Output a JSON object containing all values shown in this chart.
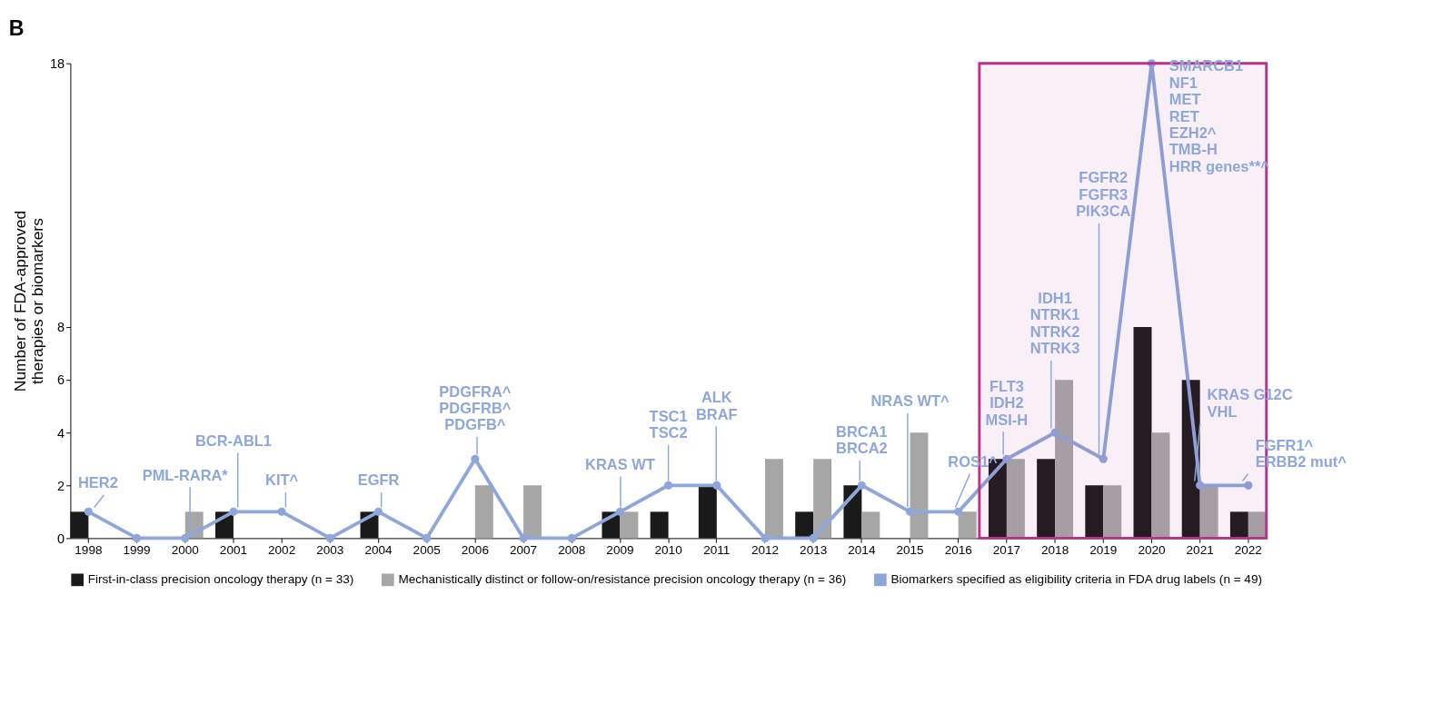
{
  "chart_data": {
    "type": "bar",
    "title": "B",
    "ylabel": "Number of FDA-approved\ntherapies or biomarkers",
    "categories": [
      "1998",
      "1999",
      "2000",
      "2001",
      "2002",
      "2003",
      "2004",
      "2005",
      "2006",
      "2007",
      "2008",
      "2009",
      "2010",
      "2011",
      "2012",
      "2013",
      "2014",
      "2015",
      "2016",
      "2017",
      "2018",
      "2019",
      "2020",
      "2021",
      "2022"
    ],
    "series": [
      {
        "name": "First-in-class precision oncology therapy (n = 33)",
        "type": "bar",
        "color": "#1a1a1a",
        "values": [
          1,
          0,
          0,
          1,
          0,
          0,
          1,
          0,
          0,
          0,
          0,
          1,
          1,
          2,
          0,
          1,
          2,
          0,
          0,
          3,
          3,
          2,
          8,
          6,
          1
        ]
      },
      {
        "name": "Mechanistically distinct or follow-on/resistance precision oncology therapy (n = 36)",
        "type": "bar",
        "color": "#a6a6a6",
        "values": [
          0,
          0,
          1,
          0,
          0,
          0,
          0,
          0,
          2,
          2,
          0,
          1,
          0,
          0,
          3,
          3,
          1,
          4,
          1,
          3,
          6,
          2,
          4,
          2,
          1
        ]
      },
      {
        "name": "Biomarkers specified as eligibility criteria in FDA drug labels (n = 49)",
        "type": "line",
        "color": "#8ea7db",
        "values": [
          1,
          0,
          0,
          1,
          1,
          0,
          1,
          0,
          3,
          0,
          0,
          1,
          2,
          2,
          0,
          0,
          2,
          1,
          1,
          3,
          4,
          3,
          18,
          2,
          2
        ]
      }
    ],
    "ylim": [
      0,
      18
    ],
    "yticks": [
      0,
      2,
      4,
      6,
      8,
      18
    ],
    "grid": false,
    "legend": "bottom",
    "marker": "circle",
    "line_style": "solid",
    "bands": [
      {
        "axis": "x",
        "from": "2017",
        "to": "2022",
        "color": "#b5338a"
      }
    ],
    "annotations": [
      {
        "text": "HER2",
        "x": "1998",
        "y": 1
      },
      {
        "text": "PML-RARA*",
        "x": "2000",
        "y": 0
      },
      {
        "text": "BCR-ABL1",
        "x": "2001",
        "y": 1
      },
      {
        "text": "KIT^",
        "x": "2002",
        "y": 1
      },
      {
        "text": "EGFR",
        "x": "2004",
        "y": 1
      },
      {
        "text": "PDGFRA^\nPDGFRB^\nPDGFB^",
        "x": "2006",
        "y": 3
      },
      {
        "text": "KRAS WT",
        "x": "2009",
        "y": 1
      },
      {
        "text": "TSC1\nTSC2",
        "x": "2010",
        "y": 2
      },
      {
        "text": "ALK\nBRAF",
        "x": "2011",
        "y": 2
      },
      {
        "text": "BRCA1\nBRCA2",
        "x": "2014",
        "y": 2
      },
      {
        "text": "NRAS WT^",
        "x": "2015",
        "y": 1
      },
      {
        "text": "ROS1^",
        "x": "2016",
        "y": 1
      },
      {
        "text": "FLT3\nIDH2\nMSI-H",
        "x": "2017",
        "y": 3
      },
      {
        "text": "IDH1\nNTRK1\nNTRK2\nNTRK3",
        "x": "2018",
        "y": 4
      },
      {
        "text": "FGFR2\nFGFR3\nPIK3CA",
        "x": "2019",
        "y": 3
      },
      {
        "text": "SMARCB1\nNF1\nMET\nRET\nEZH2^\nTMB-H\nHRR genes**^",
        "x": "2020",
        "y": 18
      },
      {
        "text": "KRAS G12C\nVHL",
        "x": "2021",
        "y": 2
      },
      {
        "text": "FGFR1^\nERBB2 mut^",
        "x": "2022",
        "y": 2
      }
    ]
  }
}
